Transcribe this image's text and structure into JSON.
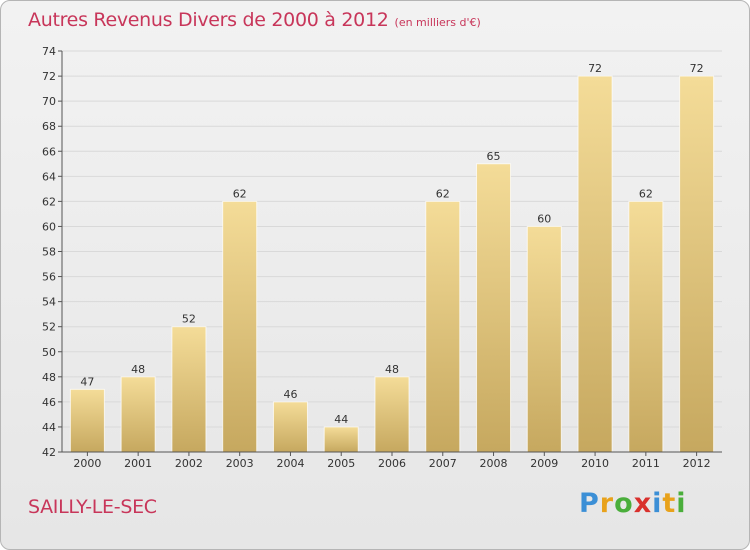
{
  "header": {
    "title": "Autres Revenus Divers de 2000 à 2012",
    "subtitle": "(en milliers d'€)"
  },
  "footer": {
    "city": "SAILLY-LE-SEC",
    "logo": [
      "P",
      "r",
      "o",
      "x",
      "i",
      "t",
      "i"
    ],
    "logo_colors": [
      "#3b8fd6",
      "#e8a21b",
      "#4aae3b",
      "#d9302c",
      "#3b8fd6",
      "#e8a21b",
      "#4aae3b"
    ]
  },
  "colors": {
    "bar_light": "#f4dc98",
    "bar_dark": "#c6a85f",
    "axis": "#555555",
    "grid": "#d9d9d9",
    "text": "#333333"
  },
  "chart_data": {
    "type": "bar",
    "categories": [
      "2000",
      "2001",
      "2002",
      "2003",
      "2004",
      "2005",
      "2006",
      "2007",
      "2008",
      "2009",
      "2010",
      "2011",
      "2012"
    ],
    "values": [
      47,
      48,
      52,
      62,
      46,
      44,
      48,
      62,
      65,
      60,
      72,
      62,
      72
    ],
    "data_labels": [
      "47",
      "48",
      "52",
      "62",
      "46",
      "44",
      "48",
      "62",
      "65",
      "60",
      "72",
      "62",
      "72"
    ],
    "ylim": [
      42,
      74
    ],
    "yticks": [
      42,
      44,
      46,
      48,
      50,
      52,
      54,
      56,
      58,
      60,
      62,
      64,
      66,
      68,
      70,
      72,
      74
    ],
    "grid": true
  }
}
